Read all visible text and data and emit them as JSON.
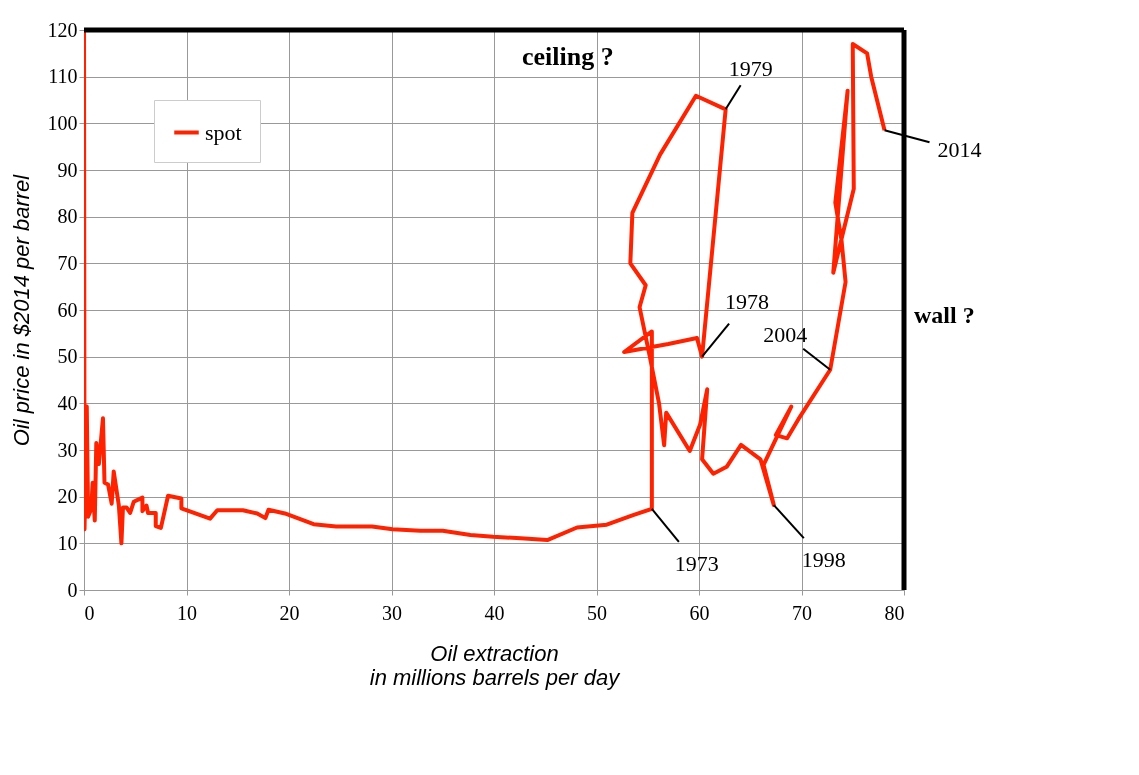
{
  "chart_data": {
    "type": "line",
    "xlabel": "Oil extraction\nin millions barrels per day",
    "ylabel": "Oil price in $2014 per barrel",
    "xlim": [
      0,
      80
    ],
    "xticks": [
      0,
      10,
      20,
      30,
      40,
      50,
      60,
      70,
      80
    ],
    "ylim": [
      0,
      120
    ],
    "yticks": [
      0,
      10,
      20,
      30,
      40,
      50,
      60,
      70,
      80,
      90,
      100,
      110,
      120
    ],
    "grid": true,
    "legend": "top left",
    "line_style": "solid",
    "marker": "none",
    "series": [
      {
        "name": "spot",
        "color": "#ff2200",
        "x": [
          0,
          0.05,
          0.27,
          0.4,
          0.7,
          0.85,
          1.05,
          1.2,
          1.45,
          1.85,
          2.0,
          2.35,
          2.7,
          2.9,
          3.4,
          3.5,
          3.65,
          3.8,
          4.15,
          4.5,
          4.85,
          5.7,
          5.7,
          6.1,
          6.25,
          7.0,
          7.0,
          7.5,
          8.2,
          9.5,
          9.5,
          12.3,
          13.0,
          15.5,
          16.9,
          17.7,
          18.0,
          19.6,
          22.4,
          24.6,
          28.1,
          30.1,
          32.8,
          35.0,
          37.7,
          39.9,
          42.6,
          45.2,
          48.1,
          51.0,
          53.5,
          55.4,
          55.4,
          52.7,
          57.0,
          59.8,
          60.3,
          62.6,
          59.7,
          56.2,
          53.5,
          53.3,
          54.8,
          54.2,
          55.2,
          56.1,
          56.6,
          56.8,
          59.1,
          60.1,
          60.8,
          60.3,
          61.4,
          62.7,
          64.1,
          66.0,
          67.3,
          66.3,
          69.0,
          67.5,
          68.6,
          69.7,
          72.8,
          74.3,
          73.9,
          73.3,
          74.5,
          73.1,
          75.1,
          75.0,
          76.4,
          76.8,
          78.1
        ],
        "values": [
          120,
          13,
          39.3,
          15.7,
          17.3,
          23,
          14.9,
          31.5,
          27,
          36.8,
          23,
          22.6,
          18.5,
          25.4,
          18.1,
          14.9,
          10,
          17.7,
          17.7,
          16.5,
          18.9,
          19.8,
          16.9,
          18.1,
          16.5,
          16.5,
          13.7,
          13.3,
          20.2,
          19.6,
          17.5,
          15.3,
          17.1,
          17.1,
          16.4,
          15.4,
          17.2,
          16.4,
          14.1,
          13.6,
          13.6,
          13.0,
          12.7,
          12.7,
          11.8,
          11.4,
          11.1,
          10.7,
          13.4,
          14.0,
          16.0,
          17.4,
          55.4,
          51,
          52.7,
          54,
          50,
          103,
          105.9,
          93.3,
          80.8,
          70,
          65.3,
          60.6,
          50,
          40,
          31,
          38,
          29.8,
          35.4,
          43,
          28,
          24.9,
          26.4,
          31.1,
          28,
          18.2,
          26.8,
          39.3,
          33.2,
          32.5,
          36.6,
          47.2,
          66,
          75,
          83,
          107,
          68,
          86,
          117,
          115,
          110,
          98.5
        ]
      }
    ],
    "ref_lines": [
      {
        "axis": "y",
        "value": 120,
        "label": "ceiling ?",
        "color": "#000000"
      },
      {
        "axis": "x",
        "value": 80,
        "label": "wall ?",
        "color": "#000000"
      }
    ],
    "annotations": [
      {
        "text": "1979",
        "x": 62.6,
        "y": 103
      },
      {
        "text": "1978",
        "x": 60.3,
        "y": 50
      },
      {
        "text": "2004",
        "x": 72.8,
        "y": 47.2
      },
      {
        "text": "1973",
        "x": 55.4,
        "y": 17.4
      },
      {
        "text": "1998",
        "x": 67.3,
        "y": 18.2
      },
      {
        "text": "2014",
        "x": 78.1,
        "y": 98.5
      }
    ]
  }
}
